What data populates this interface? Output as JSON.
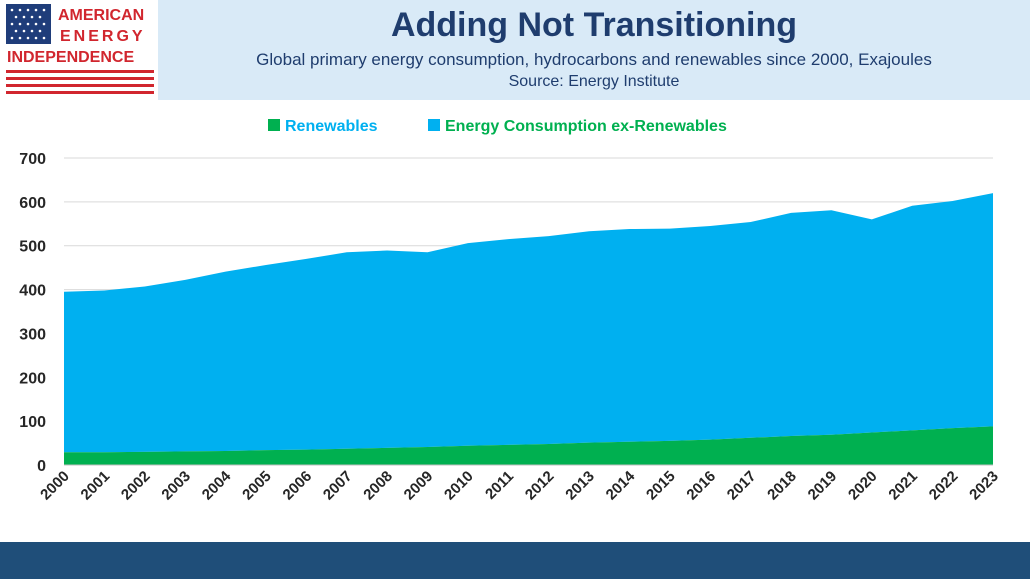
{
  "logo": {
    "line1": "AMERICAN",
    "line2": "ENERGY",
    "line3": "INDEPENDENCE"
  },
  "header": {
    "title": "Adding Not Transitioning",
    "subtitle": "Global primary energy consumption, hydrocarbons and renewables since 2000, Exajoules",
    "source": "Source: Energy Institute"
  },
  "colors": {
    "renewables": "#00b050",
    "ex_renewables": "#00b0f0",
    "legend_text": "#00b0f0",
    "title": "#1f3d6e",
    "banner": "#d9eaf7",
    "footer": "#1f4e79",
    "logo_red": "#d1262e",
    "logo_blue": "#1f3d7a"
  },
  "chart_data": {
    "type": "area",
    "stacked": true,
    "x": [
      "2000",
      "2001",
      "2002",
      "2003",
      "2004",
      "2005",
      "2006",
      "2007",
      "2008",
      "2009",
      "2010",
      "2011",
      "2012",
      "2013",
      "2014",
      "2015",
      "2016",
      "2017",
      "2018",
      "2019",
      "2020",
      "2021",
      "2022",
      "2023"
    ],
    "series": [
      {
        "name": "Renewables",
        "values": [
          29,
          29,
          30,
          31,
          32,
          34,
          35,
          37,
          39,
          41,
          44,
          46,
          48,
          51,
          53,
          55,
          58,
          62,
          66,
          69,
          74,
          79,
          84,
          88
        ]
      },
      {
        "name": "Energy Consumption ex-Renewables",
        "values": [
          366,
          369,
          377,
          391,
          409,
          422,
          435,
          448,
          450,
          444,
          462,
          469,
          474,
          482,
          485,
          484,
          487,
          492,
          509,
          512,
          486,
          512,
          518,
          532
        ]
      }
    ],
    "ylim": [
      0,
      700
    ],
    "yticks": [
      "0",
      "100",
      "200",
      "300",
      "400",
      "500",
      "600",
      "700"
    ],
    "grid": true,
    "legend_position": "top-center"
  }
}
